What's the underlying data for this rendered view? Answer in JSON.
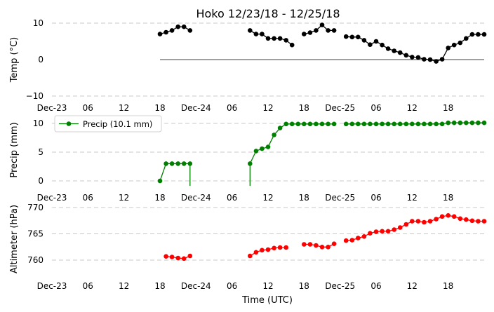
{
  "chart_data": {
    "type": "line",
    "title": "Hoko 12/23/18 - 12/25/18",
    "xlabel": "Time (UTC)",
    "x_tick_labels": [
      "Dec-23",
      "06",
      "12",
      "18",
      "Dec-24",
      "06",
      "12",
      "18",
      "Dec-25",
      "06",
      "12",
      "18"
    ],
    "panels": [
      {
        "ylabel": "Temp ($^\\circ$C)",
        "ylabel_display": "Temp (°C)",
        "ylim": [
          -10,
          10
        ],
        "yticks": [
          "10",
          "0",
          "−10"
        ],
        "grid": "y",
        "zero_line": true,
        "series": [
          {
            "color": "#000000",
            "x": [
              18.0,
              19.0,
              20.0,
              21.0,
              22.0,
              23.0,
              33.0,
              34.0,
              35.0,
              36.0,
              37.0,
              38.0,
              39.0,
              40.0,
              42.0,
              43.0,
              44.0,
              45.0,
              46.0,
              47.0,
              49.0,
              50.0,
              51.0,
              52.0,
              53.0,
              54.0,
              55.0,
              56.0,
              57.0,
              58.0,
              59.0,
              60.0,
              61.0,
              62.0,
              63.0,
              64.0,
              65.0,
              66.0,
              67.0,
              68.0,
              69.0,
              70.0,
              71.0,
              72.0
            ],
            "y": [
              7.0,
              7.5,
              8.0,
              9.0,
              9.0,
              8.0,
              8.0,
              7.0,
              7.0,
              5.8,
              5.8,
              5.8,
              5.3,
              4.0,
              7.0,
              7.4,
              8.0,
              9.5,
              8.0,
              8.0,
              6.3,
              6.2,
              6.2,
              5.3,
              4.1,
              5.0,
              4.0,
              3.0,
              2.4,
              1.9,
              1.2,
              0.7,
              0.6,
              0.1,
              0.0,
              -0.5,
              0.1,
              3.2,
              4.0,
              4.6,
              5.8,
              6.9,
              6.9,
              6.9
            ]
          }
        ]
      },
      {
        "ylabel": "Precip (mm)",
        "ylim": [
          -1,
          12
        ],
        "yticks": [
          "10",
          "5",
          "0"
        ],
        "grid": "y",
        "legend": {
          "placement": "top-left",
          "entries": [
            "Precip (10.1 mm)"
          ]
        },
        "series": [
          {
            "name": "Precip (10.1 mm)",
            "color": "#008000",
            "x": [
              18.0,
              19.0,
              20.0,
              21.0,
              22.0,
              23.0,
              33.0,
              34.0,
              35.0,
              36.0,
              37.0,
              38.0,
              39.0,
              40.0,
              41.0,
              42.0,
              43.0,
              44.0,
              45.0,
              46.0,
              47.0,
              49.0,
              50.0,
              51.0,
              52.0,
              53.0,
              54.0,
              55.0,
              56.0,
              57.0,
              58.0,
              59.0,
              60.0,
              61.0,
              62.0,
              63.0,
              64.0,
              65.0,
              66.0,
              67.0,
              68.0,
              69.0,
              70.0,
              71.0,
              72.0
            ],
            "y": [
              0.0,
              3.0,
              3.0,
              3.0,
              3.0,
              3.0,
              3.0,
              5.2,
              5.6,
              5.9,
              8.0,
              9.2,
              9.9,
              9.9,
              9.9,
              9.9,
              9.9,
              9.9,
              9.9,
              9.9,
              9.9,
              9.9,
              9.9,
              9.9,
              9.9,
              9.9,
              9.9,
              9.9,
              9.9,
              9.9,
              9.9,
              9.9,
              9.9,
              9.9,
              9.9,
              9.9,
              9.9,
              9.9,
              10.1,
              10.1,
              10.1,
              10.1,
              10.1,
              10.1,
              10.1
            ]
          }
        ]
      },
      {
        "ylabel": "Altimeter (hPa)",
        "ylim": [
          756,
          770.5
        ],
        "yticks": [
          "770",
          "765",
          "760"
        ],
        "grid": "y",
        "series": [
          {
            "color": "#ff0000",
            "x": [
              19.0,
              20.0,
              21.0,
              22.0,
              23.0,
              33.0,
              34.0,
              35.0,
              36.0,
              37.0,
              38.0,
              39.0,
              42.0,
              43.0,
              44.0,
              45.0,
              46.0,
              47.0,
              49.0,
              50.0,
              51.0,
              52.0,
              53.0,
              54.0,
              55.0,
              56.0,
              57.0,
              58.0,
              59.0,
              60.0,
              61.0,
              62.0,
              63.0,
              64.0,
              65.0,
              66.0,
              67.0,
              68.0,
              69.0,
              70.0,
              71.0,
              72.0
            ],
            "y": [
              760.7,
              760.6,
              760.4,
              760.3,
              760.8,
              760.8,
              761.5,
              761.9,
              762.0,
              762.3,
              762.4,
              762.4,
              763.0,
              763.0,
              762.8,
              762.5,
              762.5,
              763.1,
              763.7,
              763.8,
              764.2,
              764.5,
              765.1,
              765.4,
              765.5,
              765.5,
              765.8,
              766.2,
              766.8,
              767.4,
              767.4,
              767.2,
              767.4,
              767.8,
              768.3,
              768.5,
              768.3,
              767.9,
              767.7,
              767.5,
              767.4,
              767.4
            ]
          }
        ]
      }
    ]
  }
}
